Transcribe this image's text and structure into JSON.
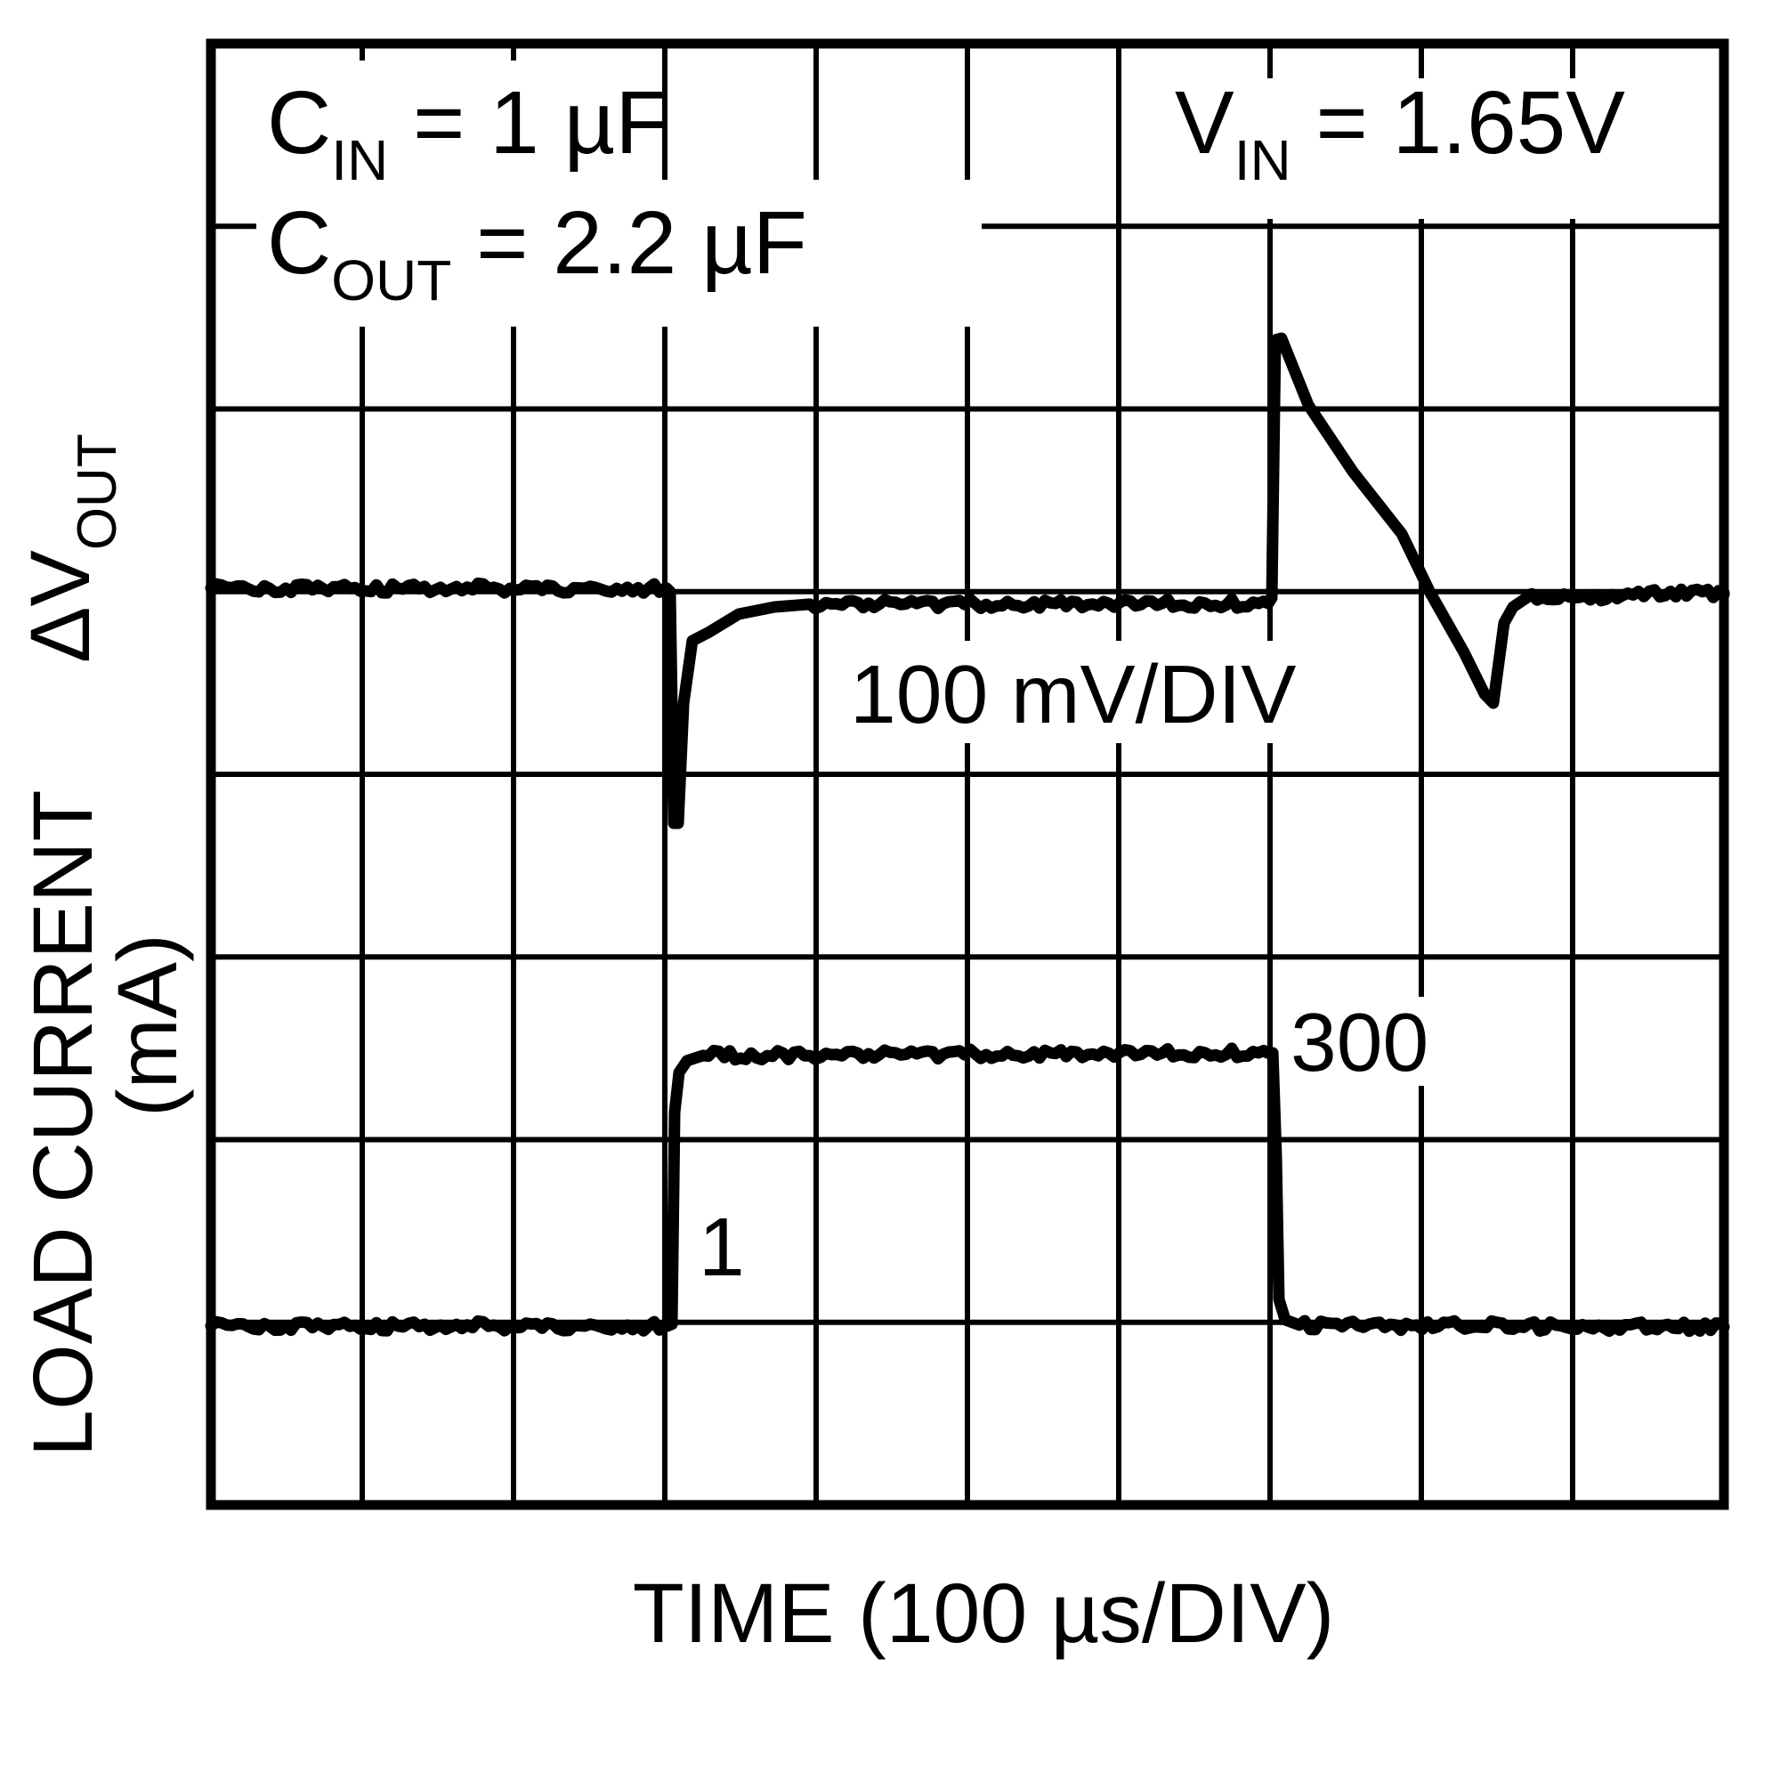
{
  "conditions": {
    "cin": {
      "pre": "C",
      "sub": "IN",
      "post": " = 1 µF"
    },
    "cout": {
      "pre": "C",
      "sub": "OUT",
      "post": " = 2.2 µF"
    },
    "vin": {
      "pre": "V",
      "sub": "IN",
      "post": " = 1.65V"
    }
  },
  "labels": {
    "vout_scale": "100 mV/DIV",
    "current_high": "300",
    "current_low": "1",
    "x_axis": "TIME (100 µs/DIV)",
    "y_axis_top": {
      "pre": "ΔV",
      "sub": "OUT"
    },
    "y_axis_bottom_line1": "LOAD CURRENT",
    "y_axis_bottom_line2": "(mA)"
  },
  "colors": {
    "ink": "#000000",
    "background": "#ffffff"
  },
  "chart_data": {
    "type": "line",
    "title": "Load Transient Response",
    "x_axis": {
      "label": "TIME (100 µs/DIV)",
      "divisions": 10,
      "us_per_div": 100
    },
    "grid": {
      "cols": 10,
      "rows": 8,
      "show": true
    },
    "traces": [
      {
        "name": "delta-vout",
        "scale": "100 mV/DIV",
        "baseline_div_from_top": 3.0,
        "undershoot_mV": -127,
        "overshoot_mV": 139,
        "load_step_up_us": 305,
        "load_step_down_us": 703,
        "points_div": [
          [
            0,
            2.981,
            1
          ],
          [
            3.012,
            2.981,
            0
          ],
          [
            3.035,
            3.0,
            0
          ],
          [
            3.059,
            4.268,
            0
          ],
          [
            3.088,
            4.268,
            0
          ],
          [
            3.124,
            3.61,
            0
          ],
          [
            3.182,
            3.269,
            0
          ],
          [
            3.294,
            3.221,
            0
          ],
          [
            3.488,
            3.123,
            0
          ],
          [
            3.724,
            3.084,
            0
          ],
          [
            3.959,
            3.069,
            1
          ],
          [
            6.988,
            3.065,
            0
          ],
          [
            7.012,
            3.035,
            0
          ],
          [
            7.035,
            1.622,
            0
          ],
          [
            7.076,
            1.613,
            0
          ],
          [
            7.253,
            1.978,
            0
          ],
          [
            7.547,
            2.343,
            0
          ],
          [
            7.871,
            2.684,
            0
          ],
          [
            8.059,
            3.006,
            0
          ],
          [
            8.282,
            3.332,
            0
          ],
          [
            8.418,
            3.561,
            0
          ],
          [
            8.476,
            3.61,
            0
          ],
          [
            8.547,
            3.171,
            0
          ],
          [
            8.606,
            3.084,
            0
          ],
          [
            8.694,
            3.035,
            1
          ],
          [
            10,
            3.006,
            0
          ]
        ]
      },
      {
        "name": "load-current",
        "unit": "mA",
        "low_mA": 1,
        "high_mA": 300,
        "step_up_us": 305,
        "step_down_us": 703,
        "points_div": [
          [
            0,
            7.02,
            1
          ],
          [
            3.018,
            7.02,
            0
          ],
          [
            3.047,
            7.01,
            0
          ],
          [
            3.065,
            5.851,
            0
          ],
          [
            3.094,
            5.632,
            0
          ],
          [
            3.147,
            5.568,
            0
          ],
          [
            3.253,
            5.539,
            1
          ],
          [
            6.982,
            5.525,
            0
          ],
          [
            7.018,
            5.525,
            0
          ],
          [
            7.041,
            6.095,
            0
          ],
          [
            7.059,
            6.874,
            0
          ],
          [
            7.1,
            6.986,
            0
          ],
          [
            7.194,
            7.015,
            1
          ],
          [
            10,
            7.025,
            0
          ]
        ]
      }
    ]
  }
}
